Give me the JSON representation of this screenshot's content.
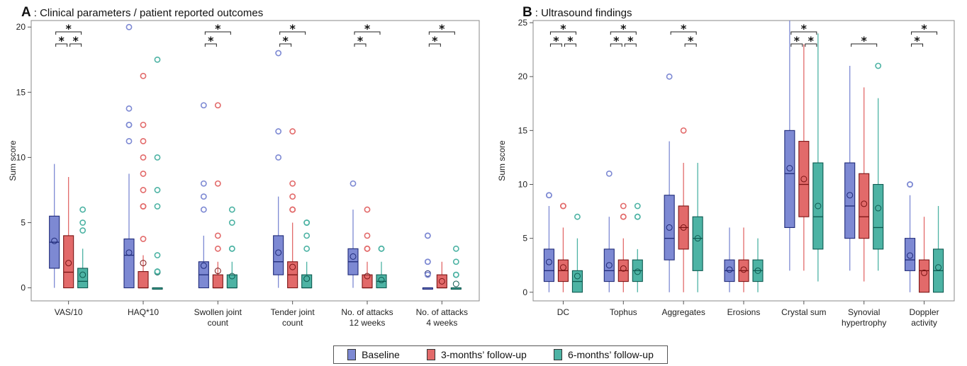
{
  "colors": {
    "baseline": "#7d89d3",
    "followup3": "#e26a6a",
    "followup6": "#4db3a4",
    "baseline_edge": "#1f2a78",
    "followup3_edge": "#7a1414",
    "followup6_edge": "#0d5a50"
  },
  "legend": {
    "items": [
      "Baseline",
      "3-months’ follow-up",
      "6-months’ follow-up"
    ]
  },
  "chart_data": [
    {
      "type": "box",
      "panel_letter": "A",
      "title": ": Clinical parameters / patient reported outcomes",
      "ylabel": "Sum score",
      "ylim": [
        -1,
        20.5
      ],
      "yticks": [
        0,
        5,
        10,
        15,
        20
      ],
      "series_names": [
        "Baseline",
        "3-months’ follow-up",
        "6-months’ follow-up"
      ],
      "categories": [
        {
          "label": [
            "VAS/10"
          ],
          "series": [
            {
              "q1": 1.5,
              "median": 3.5,
              "q3": 5.5,
              "min": 0,
              "max": 9.5,
              "mean": 3.6,
              "outliers": []
            },
            {
              "q1": 0,
              "median": 1.2,
              "q3": 4,
              "min": 0,
              "max": 8.5,
              "mean": 1.9,
              "outliers": []
            },
            {
              "q1": 0,
              "median": 0.5,
              "q3": 1.5,
              "min": 0,
              "max": 3,
              "mean": 1,
              "outliers": [
                4.4,
                5,
                6
              ]
            }
          ],
          "sig": [
            {
              "a": 0,
              "b": 1,
              "level": 1
            },
            {
              "a": 1,
              "b": 2,
              "level": 1
            },
            {
              "a": 0,
              "b": 2,
              "level": 2
            }
          ]
        },
        {
          "label": [
            "HAQ*10"
          ],
          "series": [
            {
              "q1": 0,
              "median": 2.5,
              "q3": 3.75,
              "min": 0,
              "max": 8.75,
              "mean": 2.7,
              "outliers": [
                11.25,
                12.5,
                12.5,
                13.75,
                20
              ]
            },
            {
              "q1": 0,
              "median": 0,
              "q3": 1.25,
              "min": 0,
              "max": 2.5,
              "mean": 1.9,
              "outliers": [
                3.75,
                6.25,
                6.25,
                7.5,
                8.75,
                10,
                11.25,
                12.5,
                16.25
              ]
            },
            {
              "q1": 0,
              "median": 0,
              "q3": 0,
              "min": 0,
              "max": 0,
              "mean": 1.2,
              "outliers": [
                1.25,
                1.25,
                2.5,
                6.25,
                7.5,
                10,
                17.5
              ]
            }
          ],
          "sig": []
        },
        {
          "label": [
            "Swollen joint",
            "count"
          ],
          "series": [
            {
              "q1": 0,
              "median": 1,
              "q3": 2,
              "min": 0,
              "max": 4,
              "mean": 1.7,
              "outliers": [
                6,
                7,
                8,
                14
              ]
            },
            {
              "q1": 0,
              "median": 0,
              "q3": 1,
              "min": 0,
              "max": 2,
              "mean": 1.3,
              "outliers": [
                3,
                4,
                8,
                14
              ]
            },
            {
              "q1": 0,
              "median": 0,
              "q3": 1,
              "min": 0,
              "max": 2,
              "mean": 0.9,
              "outliers": [
                3,
                3,
                5,
                6
              ]
            }
          ],
          "sig": [
            {
              "a": 0,
              "b": 1,
              "level": 1
            },
            {
              "a": 0,
              "b": 2,
              "level": 2
            }
          ]
        },
        {
          "label": [
            "Tender joint",
            "count"
          ],
          "series": [
            {
              "q1": 1,
              "median": 2,
              "q3": 4,
              "min": 0,
              "max": 7,
              "mean": 2.7,
              "outliers": [
                10,
                12,
                18
              ]
            },
            {
              "q1": 0,
              "median": 1,
              "q3": 2,
              "min": 0,
              "max": 5,
              "mean": 1.6,
              "outliers": [
                6,
                6,
                7,
                8,
                12
              ]
            },
            {
              "q1": 0,
              "median": 0,
              "q3": 1,
              "min": 0,
              "max": 2,
              "mean": 0.7,
              "outliers": [
                3,
                4,
                5,
                5
              ]
            }
          ],
          "sig": [
            {
              "a": 0,
              "b": 1,
              "level": 1
            },
            {
              "a": 0,
              "b": 2,
              "level": 2
            }
          ]
        },
        {
          "label": [
            "No. of attacks",
            "12 weeks"
          ],
          "series": [
            {
              "q1": 1,
              "median": 2,
              "q3": 3,
              "min": 0,
              "max": 6,
              "mean": 2.4,
              "outliers": [
                8
              ]
            },
            {
              "q1": 0,
              "median": 0,
              "q3": 1,
              "min": 0,
              "max": 2,
              "mean": 0.9,
              "outliers": [
                3,
                3,
                4,
                6
              ]
            },
            {
              "q1": 0,
              "median": 0.5,
              "q3": 1,
              "min": 0,
              "max": 2,
              "mean": 0.6,
              "outliers": [
                3,
                3
              ]
            }
          ],
          "sig": [
            {
              "a": 0,
              "b": 1,
              "level": 1
            },
            {
              "a": 0,
              "b": 2,
              "level": 2
            }
          ]
        },
        {
          "label": [
            "No. of attacks",
            "4 weeks"
          ],
          "series": [
            {
              "q1": 0,
              "median": 0,
              "q3": 0,
              "min": 0,
              "max": 0,
              "mean": 1.1,
              "outliers": [
                1,
                2,
                2,
                4,
                4
              ]
            },
            {
              "q1": 0,
              "median": 0,
              "q3": 1,
              "min": 0,
              "max": 2,
              "mean": 0.5,
              "outliers": []
            },
            {
              "q1": 0,
              "median": 0,
              "q3": 0,
              "min": 0,
              "max": 0,
              "mean": 0.3,
              "outliers": [
                1,
                1,
                2,
                3
              ]
            }
          ],
          "sig": [
            {
              "a": 0,
              "b": 1,
              "level": 1
            },
            {
              "a": 0,
              "b": 2,
              "level": 2
            }
          ]
        }
      ]
    },
    {
      "type": "box",
      "panel_letter": "B",
      "title": ": Ultrasound findings",
      "ylabel": "Sum score",
      "ylim": [
        -0.8,
        25.2
      ],
      "yticks": [
        0,
        5,
        10,
        15,
        20,
        25
      ],
      "series_names": [
        "Baseline",
        "3-months’ follow-up",
        "6-months’ follow-up"
      ],
      "categories": [
        {
          "label": [
            "DC"
          ],
          "series": [
            {
              "q1": 1,
              "median": 2,
              "q3": 4,
              "min": 0,
              "max": 8,
              "mean": 2.8,
              "outliers": [
                9,
                9
              ]
            },
            {
              "q1": 1,
              "median": 2,
              "q3": 3,
              "min": 0,
              "max": 6,
              "mean": 2.3,
              "outliers": [
                8,
                8
              ]
            },
            {
              "q1": 0,
              "median": 1,
              "q3": 2,
              "min": 0,
              "max": 5,
              "mean": 1.5,
              "outliers": [
                7
              ]
            }
          ],
          "sig": [
            {
              "a": 0,
              "b": 1,
              "level": 1
            },
            {
              "a": 1,
              "b": 2,
              "level": 1
            },
            {
              "a": 0,
              "b": 2,
              "level": 2
            }
          ]
        },
        {
          "label": [
            "Tophus"
          ],
          "series": [
            {
              "q1": 1,
              "median": 2,
              "q3": 4,
              "min": 0,
              "max": 7,
              "mean": 2.5,
              "outliers": [
                11
              ]
            },
            {
              "q1": 1,
              "median": 2,
              "q3": 3,
              "min": 0,
              "max": 5,
              "mean": 2.2,
              "outliers": [
                7,
                7,
                8
              ]
            },
            {
              "q1": 1,
              "median": 2,
              "q3": 3,
              "min": 0,
              "max": 4,
              "mean": 1.9,
              "outliers": [
                7,
                7,
                8
              ]
            }
          ],
          "sig": [
            {
              "a": 0,
              "b": 1,
              "level": 1
            },
            {
              "a": 1,
              "b": 2,
              "level": 1
            },
            {
              "a": 0,
              "b": 2,
              "level": 2
            }
          ]
        },
        {
          "label": [
            "Aggregates"
          ],
          "series": [
            {
              "q1": 3,
              "median": 5,
              "q3": 9,
              "min": 0,
              "max": 14,
              "mean": 6,
              "outliers": [
                20
              ]
            },
            {
              "q1": 4,
              "median": 6,
              "q3": 8,
              "min": 0,
              "max": 12,
              "mean": 6,
              "outliers": [
                15
              ]
            },
            {
              "q1": 2,
              "median": 5,
              "q3": 7,
              "min": 0,
              "max": 12,
              "mean": 5,
              "outliers": []
            }
          ],
          "sig": [
            {
              "a": 1,
              "b": 2,
              "level": 1
            },
            {
              "a": 0,
              "b": 2,
              "level": 2
            }
          ]
        },
        {
          "label": [
            "Erosions"
          ],
          "series": [
            {
              "q1": 1,
              "median": 2,
              "q3": 3,
              "min": 0,
              "max": 6,
              "mean": 2.1,
              "outliers": []
            },
            {
              "q1": 1,
              "median": 2,
              "q3": 3,
              "min": 0,
              "max": 6,
              "mean": 2.1,
              "outliers": []
            },
            {
              "q1": 1,
              "median": 2,
              "q3": 3,
              "min": 0,
              "max": 5,
              "mean": 2,
              "outliers": []
            }
          ],
          "sig": []
        },
        {
          "label": [
            "Crystal sum"
          ],
          "series": [
            {
              "q1": 6,
              "median": 11,
              "q3": 15,
              "min": 2,
              "max": 25.2,
              "mean": 11.5,
              "outliers": []
            },
            {
              "q1": 7,
              "median": 10,
              "q3": 14,
              "min": 2,
              "max": 23,
              "mean": 10.5,
              "outliers": []
            },
            {
              "q1": 4,
              "median": 7,
              "q3": 12,
              "min": 1,
              "max": 24,
              "mean": 8,
              "outliers": []
            }
          ],
          "sig": [
            {
              "a": 0,
              "b": 1,
              "level": 1
            },
            {
              "a": 1,
              "b": 2,
              "level": 1
            },
            {
              "a": 0,
              "b": 2,
              "level": 2
            }
          ]
        },
        {
          "label": [
            "Synovial",
            "hypertrophy"
          ],
          "series": [
            {
              "q1": 5,
              "median": 8,
              "q3": 12,
              "min": 2,
              "max": 21,
              "mean": 9,
              "outliers": []
            },
            {
              "q1": 5,
              "median": 7,
              "q3": 11,
              "min": 1,
              "max": 19,
              "mean": 8.2,
              "outliers": []
            },
            {
              "q1": 4,
              "median": 6,
              "q3": 10,
              "min": 2,
              "max": 18,
              "mean": 7.8,
              "outliers": [
                21
              ]
            }
          ],
          "sig": [
            {
              "a": 0,
              "b": 2,
              "level": 1
            }
          ]
        },
        {
          "label": [
            "Doppler",
            "activity"
          ],
          "series": [
            {
              "q1": 2,
              "median": 3,
              "q3": 5,
              "min": 0,
              "max": 9,
              "mean": 3.4,
              "outliers": [
                10,
                10
              ]
            },
            {
              "q1": 0,
              "median": 2,
              "q3": 3,
              "min": 0,
              "max": 7,
              "mean": 1.8,
              "outliers": []
            },
            {
              "q1": 0,
              "median": 2,
              "q3": 4,
              "min": 0,
              "max": 8,
              "mean": 2.3,
              "outliers": []
            }
          ],
          "sig": [
            {
              "a": 0,
              "b": 1,
              "level": 1
            },
            {
              "a": 0,
              "b": 2,
              "level": 2
            }
          ]
        }
      ]
    }
  ]
}
